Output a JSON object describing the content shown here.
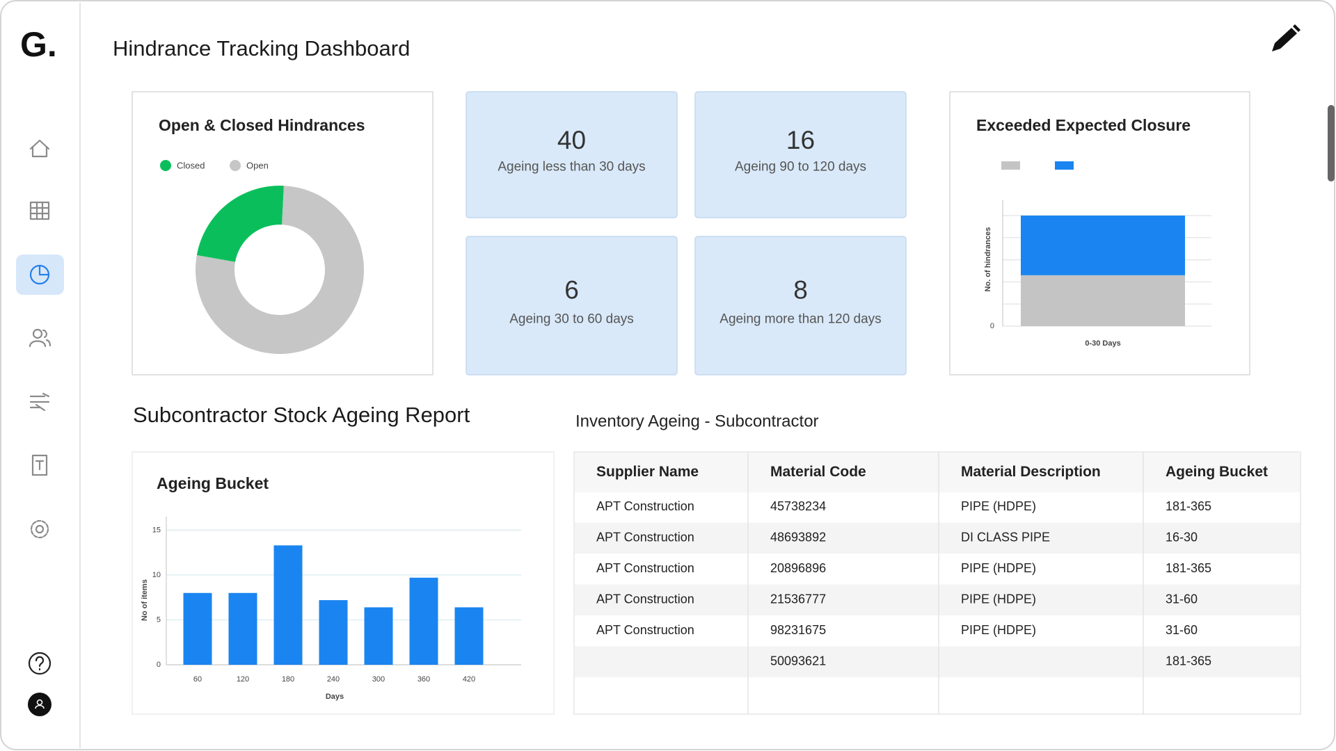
{
  "logo": "G.",
  "header": {
    "title": "Hindrance Tracking Dashboard"
  },
  "kpis": [
    {
      "value": 40,
      "label": "Ageing less than 30 days"
    },
    {
      "value": 16,
      "label": "Ageing 90 to 120 days"
    },
    {
      "value": 6,
      "label": "Ageing 30 to 60 days"
    },
    {
      "value": 8,
      "label": "Ageing more than 120 days"
    }
  ],
  "section_title": "Subcontractor Stock Ageing Report",
  "table": {
    "title": "Inventory Ageing - Subcontractor",
    "columns": [
      "Supplier Name",
      "Material Code",
      "Material Description",
      "Ageing Bucket"
    ],
    "rows": [
      [
        "APT Construction",
        "45738234",
        "PIPE (HDPE)",
        "181-365"
      ],
      [
        "APT Construction",
        "48693892",
        "DI CLASS PIPE",
        "16-30"
      ],
      [
        "APT Construction",
        "20896896",
        "PIPE (HDPE)",
        "181-365"
      ],
      [
        "APT Construction",
        "21536777",
        "PIPE (HDPE)",
        "31-60"
      ],
      [
        "APT Construction",
        "98231675",
        "PIPE (HDPE)",
        "31-60"
      ],
      [
        null,
        "50093621",
        null,
        "181-365"
      ]
    ]
  },
  "chart_data": [
    {
      "type": "pie",
      "title": "Open & Closed Hindrances",
      "donut": true,
      "categories": [
        "Closed",
        "Open"
      ],
      "values": [
        23,
        77
      ],
      "colors": [
        "#0abf5b",
        "#c6c6c6"
      ]
    },
    {
      "type": "stacked_bar",
      "title": "Exceeded Expected Closure",
      "categories": [
        "0-30 Days"
      ],
      "series": [
        {
          "color": "#c4c4c4",
          "values": [
            2.3
          ]
        },
        {
          "color": "#1a85f0",
          "values": [
            2.7
          ]
        }
      ],
      "ylabel": "No. of hindrances",
      "ylim": [
        0,
        5
      ],
      "yticks": [
        0
      ],
      "gridlines": [
        0,
        1,
        2,
        3,
        4,
        5
      ]
    },
    {
      "type": "bar",
      "title": "Ageing Bucket",
      "categories": [
        "60",
        "120",
        "180",
        "240",
        "300",
        "360",
        "420"
      ],
      "values": [
        8,
        8,
        13.3,
        7.2,
        6.4,
        9.7,
        6.4
      ],
      "color": "#1a85f0",
      "xlabel": "Days",
      "ylabel": "No of items",
      "ylim": [
        0,
        16.5
      ],
      "yticks": [
        0,
        5,
        10,
        15
      ],
      "grid": true
    }
  ]
}
